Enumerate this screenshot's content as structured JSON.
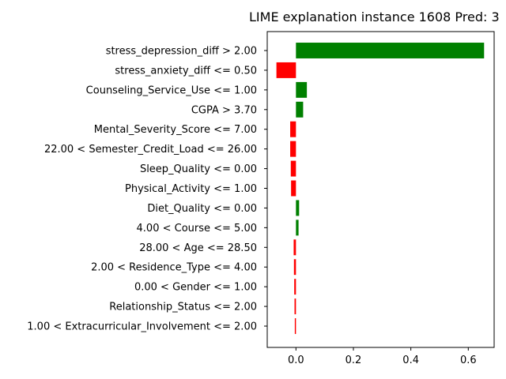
{
  "chart_data": {
    "type": "bar",
    "orientation": "horizontal",
    "title": "LIME explanation instance 1608 Pred: 3",
    "xlabel": "",
    "ylabel": "",
    "xlim": [
      -0.1,
      0.69
    ],
    "xticks": [
      0.0,
      0.2,
      0.4,
      0.6
    ],
    "xtick_labels": [
      "0.0",
      "0.2",
      "0.4",
      "0.6"
    ],
    "grid": false,
    "positive_color": "#008000",
    "negative_color": "#ff0000",
    "categories": [
      "stress_depression_diff > 2.00",
      "stress_anxiety_diff <= 0.50",
      "Counseling_Service_Use <= 1.00",
      "CGPA > 3.70",
      "Mental_Severity_Score <= 7.00",
      "22.00 < Semester_Credit_Load <= 26.00",
      "Sleep_Quality <= 0.00",
      "Physical_Activity <= 1.00",
      "Diet_Quality <= 0.00",
      "4.00 < Course <= 5.00",
      "28.00 < Age <= 28.50",
      "2.00 < Residence_Type <= 4.00",
      "0.00 < Gender <= 1.00",
      "Relationship_Status <= 2.00",
      "1.00 < Extracurricular_Involvement <= 2.00"
    ],
    "values": [
      0.655,
      -0.068,
      0.038,
      0.025,
      -0.02,
      -0.02,
      -0.018,
      -0.017,
      0.011,
      0.009,
      -0.008,
      -0.007,
      -0.006,
      -0.005,
      -0.004
    ]
  }
}
